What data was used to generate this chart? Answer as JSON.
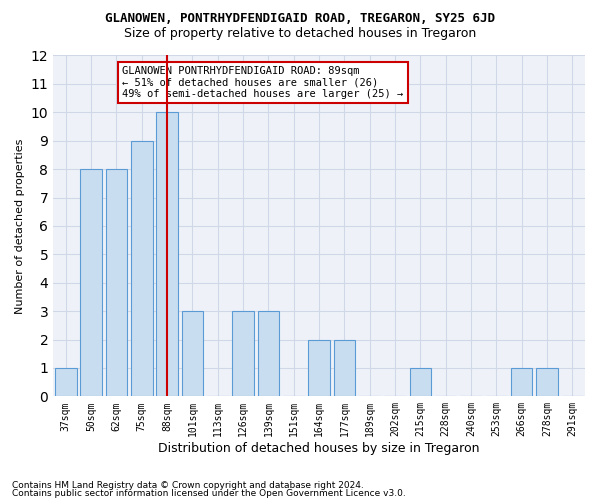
{
  "title": "GLANOWEN, PONTRHYDFENDIGAID ROAD, TREGARON, SY25 6JD",
  "subtitle": "Size of property relative to detached houses in Tregaron",
  "xlabel": "Distribution of detached houses by size in Tregaron",
  "ylabel": "Number of detached properties",
  "categories": [
    "37sqm",
    "50sqm",
    "62sqm",
    "75sqm",
    "88sqm",
    "101sqm",
    "113sqm",
    "126sqm",
    "139sqm",
    "151sqm",
    "164sqm",
    "177sqm",
    "189sqm",
    "202sqm",
    "215sqm",
    "228sqm",
    "240sqm",
    "253sqm",
    "266sqm",
    "278sqm",
    "291sqm"
  ],
  "values": [
    1,
    8,
    8,
    9,
    10,
    3,
    0,
    3,
    3,
    0,
    2,
    2,
    0,
    0,
    1,
    0,
    0,
    0,
    1,
    1,
    0
  ],
  "bar_color": "#c9ddf0",
  "bar_edge_color": "#5b9bd5",
  "highlight_index": 4,
  "highlight_line_color": "#cc0000",
  "ylim": [
    0,
    12
  ],
  "yticks": [
    0,
    1,
    2,
    3,
    4,
    5,
    6,
    7,
    8,
    9,
    10,
    11,
    12
  ],
  "annotation_text": "GLANOWEN PONTRHYDFENDIGAID ROAD: 89sqm\n← 51% of detached houses are smaller (26)\n49% of semi-detached houses are larger (25) →",
  "annotation_box_color": "#ffffff",
  "annotation_box_edge": "#cc0000",
  "footnote1": "Contains HM Land Registry data © Crown copyright and database right 2024.",
  "footnote2": "Contains public sector information licensed under the Open Government Licence v3.0.",
  "grid_color": "#d0d8e8",
  "bg_color": "#eef2f8"
}
